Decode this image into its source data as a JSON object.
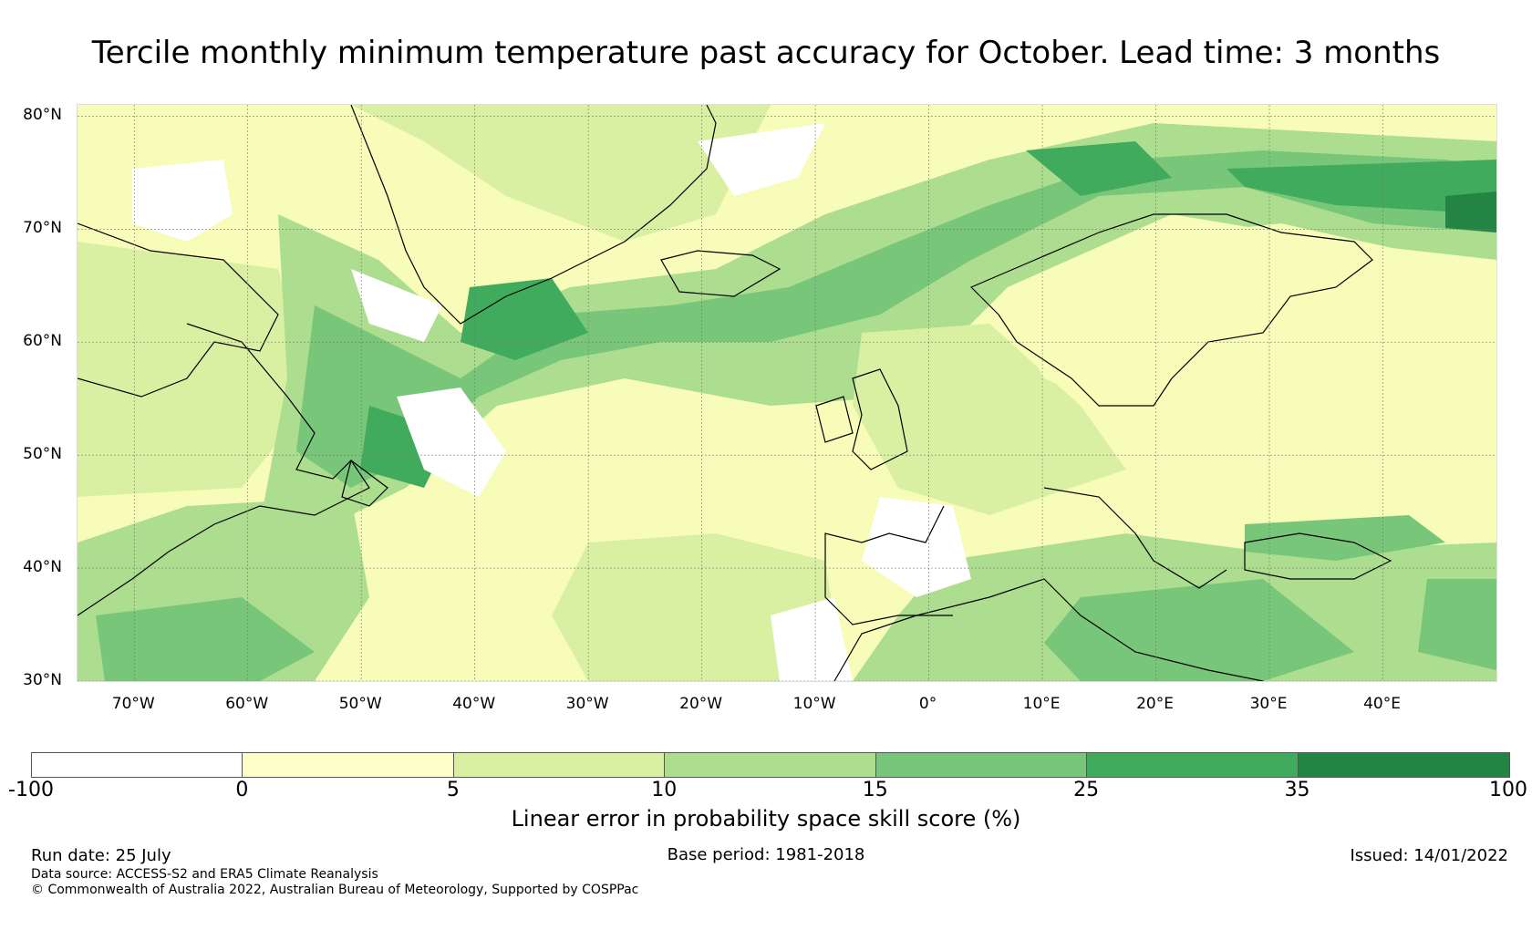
{
  "title": "Tercile monthly minimum temperature past accuracy for October. Lead time: 3 months",
  "map": {
    "lon_range": [
      -75,
      50
    ],
    "lat_range": [
      30,
      81
    ],
    "lat_ticks": [
      {
        "value": 80,
        "label": "80°N"
      },
      {
        "value": 70,
        "label": "70°N"
      },
      {
        "value": 60,
        "label": "60°N"
      },
      {
        "value": 50,
        "label": "50°N"
      },
      {
        "value": 40,
        "label": "40°N"
      },
      {
        "value": 30,
        "label": "30°N"
      }
    ],
    "lon_ticks": [
      {
        "value": -70,
        "label": "70°W"
      },
      {
        "value": -60,
        "label": "60°W"
      },
      {
        "value": -50,
        "label": "50°W"
      },
      {
        "value": -40,
        "label": "40°W"
      },
      {
        "value": -30,
        "label": "30°W"
      },
      {
        "value": -20,
        "label": "20°W"
      },
      {
        "value": -10,
        "label": "10°W"
      },
      {
        "value": 0,
        "label": "0°"
      },
      {
        "value": 10,
        "label": "10°E"
      },
      {
        "value": 20,
        "label": "20°E"
      },
      {
        "value": 30,
        "label": "30°E"
      },
      {
        "value": 40,
        "label": "40°E"
      }
    ],
    "gridlines": true
  },
  "colorbar": {
    "label": "Linear error in probability space skill score (%)",
    "ticks": [
      "-100",
      "0",
      "5",
      "10",
      "15",
      "25",
      "35",
      "100"
    ],
    "colors": [
      "#ffffff",
      "#ffffcc",
      "#d9f0a3",
      "#addd8e",
      "#78c679",
      "#41ab5d",
      "#238443"
    ]
  },
  "footer": {
    "run_date": "Run date: 25 July",
    "base_period": "Base period: 1981-2018",
    "issued": "Issued: 14/01/2022",
    "data_source": "Data source: ACCESS-S2 and ERA5 Climate Reanalysis",
    "copyright": "© Commonwealth of Australia 2022, Australian Bureau of Meteorology, Supported by COSPPac"
  }
}
